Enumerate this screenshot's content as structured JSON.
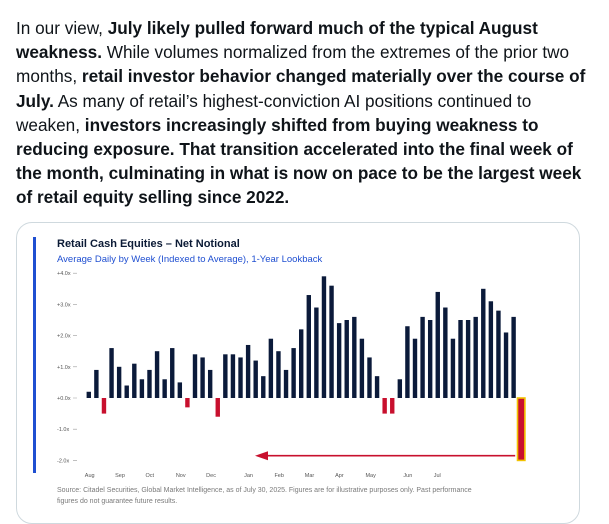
{
  "tweet": {
    "segments": [
      {
        "text": "In our view, ",
        "bold": false
      },
      {
        "text": "July likely pulled forward much of the typical August weakness.",
        "bold": true
      },
      {
        "text": " While volumes normalized from the extremes of the prior two months, ",
        "bold": false
      },
      {
        "text": "retail investor behavior changed materially over the course of July.",
        "bold": true
      },
      {
        "text": " As many of retail’s highest-conviction AI positions continued to weaken, ",
        "bold": false
      },
      {
        "text": "investors increasingly shifted from buying weakness to reducing exposure. That transition accelerated into the final week of the month, culminating in what is now on pace to be the largest week of retail equity selling since 2022.",
        "bold": true
      }
    ]
  },
  "chart": {
    "title": "Retail Cash Equities – Net Notional",
    "subtitle": "Average Daily by Week (Indexed to Average), 1-Year Lookback",
    "source_line1": "Source: Citadel Securities, Global Market Intelligence, as of July 30, 2025. Figures are for illustrative purposes only. Past performance",
    "source_line2": "figures do not guarantee future results.",
    "colors": {
      "positive": "#0b1a3a",
      "negative": "#c8102e",
      "highlight_fill": "#c8102e",
      "highlight_border": "#f2c200",
      "accent_bar": "#1f4fd1",
      "arrow": "#c8102e"
    }
  },
  "chart_data": {
    "type": "bar",
    "ylim": [
      -2.0,
      4.0
    ],
    "yticks": [
      "+4.0x",
      "+3.0x",
      "+2.0x",
      "+1.0x",
      "+0.0x",
      "-1.0x",
      "-2.0x"
    ],
    "ytick_values": [
      4,
      3,
      2,
      1,
      0,
      -1,
      -2
    ],
    "xticks": [
      "Aug",
      "Sep",
      "Oct",
      "Nov",
      "Dec",
      "Jan",
      "Feb",
      "Mar",
      "Apr",
      "May",
      "Jun",
      "Jul"
    ],
    "xtick_indices": [
      0,
      4,
      8,
      12,
      16,
      21,
      25,
      29,
      33,
      37,
      42,
      46
    ],
    "values": [
      0.2,
      0.9,
      -0.5,
      1.6,
      1.0,
      0.4,
      1.1,
      0.6,
      0.9,
      1.5,
      0.6,
      1.6,
      0.5,
      -0.3,
      1.4,
      1.3,
      0.9,
      -0.6,
      1.4,
      1.4,
      1.3,
      1.7,
      1.2,
      0.7,
      1.9,
      1.5,
      0.9,
      1.6,
      2.2,
      3.3,
      2.9,
      3.9,
      3.6,
      2.4,
      2.5,
      2.6,
      1.9,
      1.3,
      0.7,
      -0.5,
      -0.5,
      0.6,
      2.3,
      1.9,
      2.6,
      2.5,
      3.4,
      2.9,
      1.9,
      2.5,
      2.5,
      2.6,
      3.5,
      3.1,
      2.8,
      2.1,
      2.6,
      -2.0
    ],
    "highlight_last": true,
    "annotation": "arrow pointing to final week"
  }
}
